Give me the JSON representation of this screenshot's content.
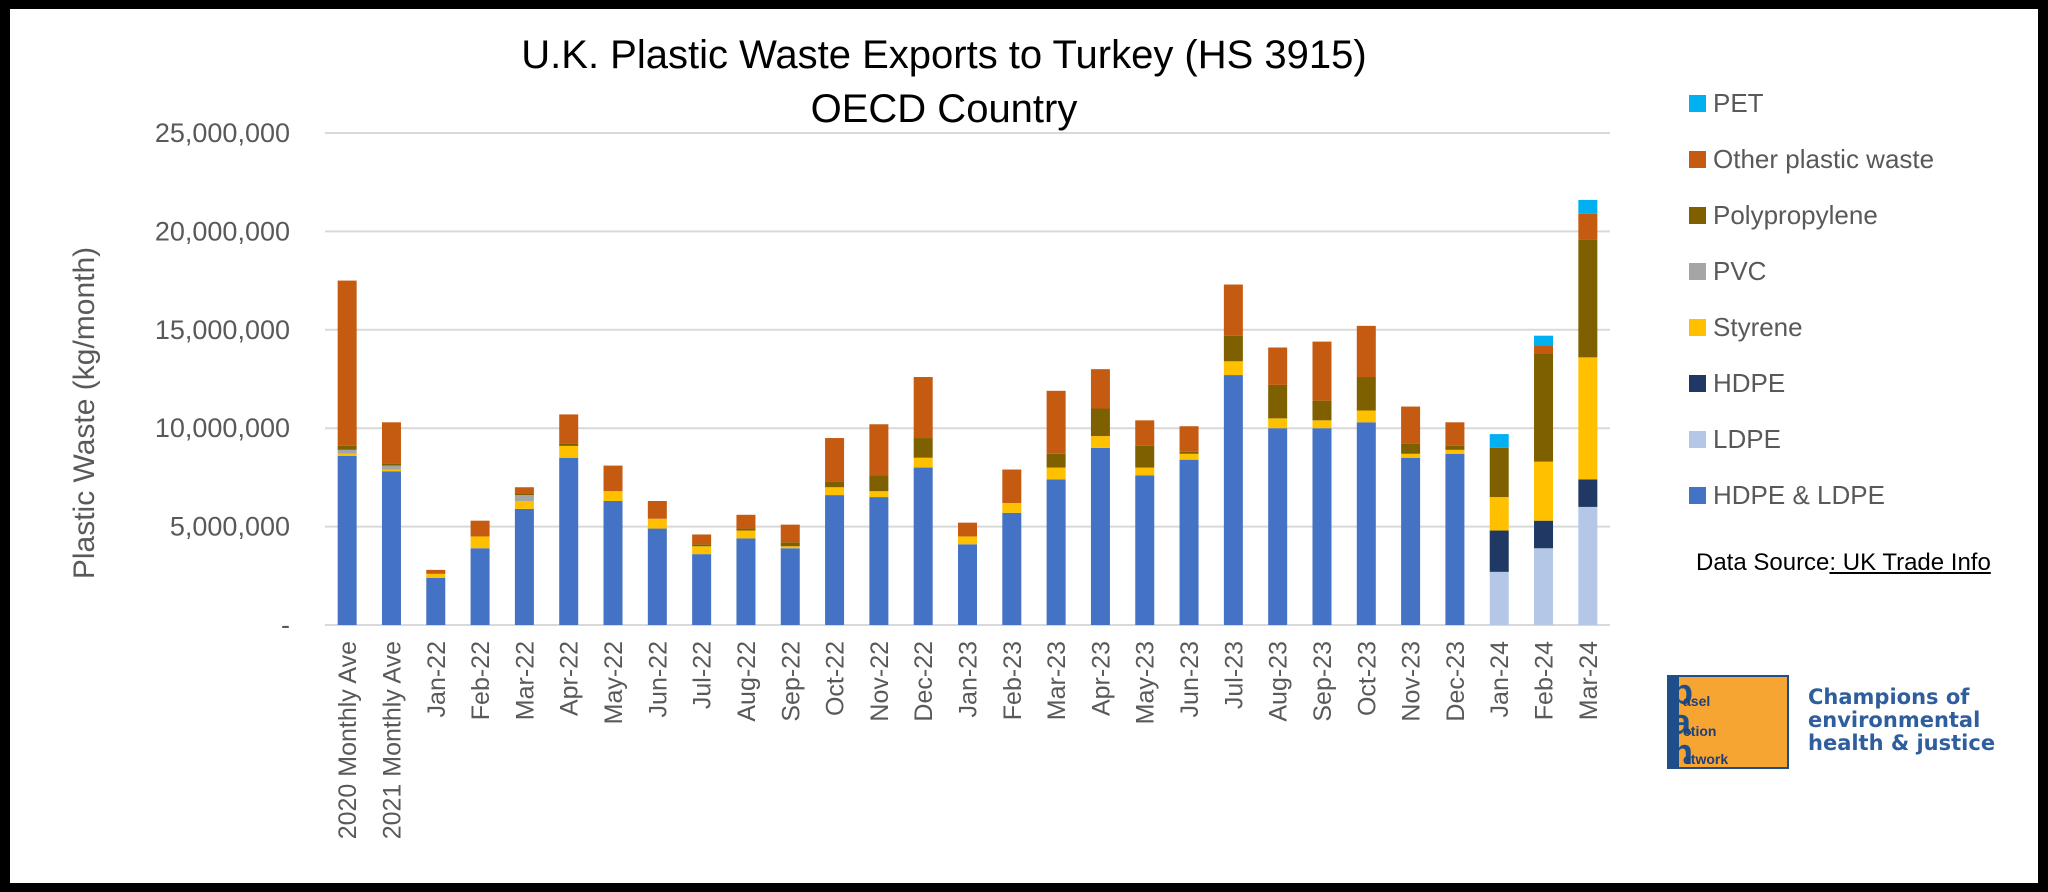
{
  "chart_data": {
    "type": "bar",
    "stacked": true,
    "title": "U.K. Plastic Waste Exports to Turkey (HS 3915)",
    "subtitle": "OECD Country",
    "ylabel": "Plastic Waste (kg/month)",
    "xlabel": "",
    "ylim": [
      0,
      25000000
    ],
    "yticks": [
      0,
      5000000,
      10000000,
      15000000,
      20000000,
      25000000
    ],
    "ytick_labels": [
      "-",
      "5,000,000",
      "10,000,000",
      "15,000,000",
      "20,000,000",
      "25,000,000"
    ],
    "grid": true,
    "legend_position": "right",
    "categories": [
      "2020 Monthly Ave",
      "2021 Monthly Ave",
      "Jan-22",
      "Feb-22",
      "Mar-22",
      "Apr-22",
      "May-22",
      "Jun-22",
      "Jul-22",
      "Aug-22",
      "Sep-22",
      "Oct-22",
      "Nov-22",
      "Dec-22",
      "Jan-23",
      "Feb-23",
      "Mar-23",
      "Apr-23",
      "May-23",
      "Jun-23",
      "Jul-23",
      "Aug-23",
      "Sep-23",
      "Oct-23",
      "Nov-23",
      "Dec-23",
      "Jan-24",
      "Feb-24",
      "Mar-24"
    ],
    "series": [
      {
        "name": "HDPE & LDPE",
        "color": "#4472c4",
        "values": [
          8600000,
          7800000,
          2400000,
          3900000,
          5900000,
          8500000,
          6300000,
          4900000,
          3600000,
          4400000,
          3900000,
          6600000,
          6500000,
          8000000,
          4100000,
          5700000,
          7400000,
          9000000,
          7600000,
          8400000,
          12700000,
          10000000,
          10000000,
          10300000,
          8500000,
          8700000,
          0,
          0,
          0
        ]
      },
      {
        "name": "LDPE",
        "color": "#b4c7e7",
        "values": [
          0,
          0,
          0,
          0,
          0,
          0,
          0,
          0,
          0,
          0,
          0,
          0,
          0,
          0,
          0,
          0,
          0,
          0,
          0,
          0,
          0,
          0,
          0,
          0,
          0,
          0,
          2700000,
          3900000,
          6000000
        ]
      },
      {
        "name": "HDPE",
        "color": "#203864",
        "values": [
          0,
          0,
          0,
          0,
          0,
          0,
          0,
          0,
          0,
          0,
          0,
          0,
          0,
          0,
          0,
          0,
          0,
          0,
          0,
          0,
          0,
          0,
          0,
          0,
          0,
          0,
          2100000,
          1400000,
          1400000
        ]
      },
      {
        "name": "Styrene",
        "color": "#ffc000",
        "values": [
          100000,
          100000,
          200000,
          600000,
          400000,
          600000,
          500000,
          500000,
          400000,
          400000,
          100000,
          400000,
          300000,
          500000,
          400000,
          500000,
          600000,
          600000,
          400000,
          300000,
          700000,
          500000,
          400000,
          600000,
          200000,
          200000,
          1700000,
          3000000,
          6200000
        ]
      },
      {
        "name": "PVC",
        "color": "#a5a5a5",
        "values": [
          200000,
          200000,
          0,
          0,
          300000,
          0,
          0,
          0,
          0,
          0,
          0,
          0,
          0,
          0,
          0,
          0,
          0,
          0,
          0,
          0,
          0,
          0,
          0,
          0,
          0,
          0,
          0,
          0,
          0
        ]
      },
      {
        "name": "Polypropylene",
        "color": "#7f6000",
        "values": [
          200000,
          100000,
          0,
          0,
          100000,
          100000,
          0,
          0,
          100000,
          100000,
          200000,
          300000,
          800000,
          1000000,
          0,
          0,
          700000,
          1400000,
          1100000,
          100000,
          1300000,
          1700000,
          1000000,
          1700000,
          500000,
          200000,
          2500000,
          5500000,
          6000000
        ]
      },
      {
        "name": "Other plastic waste",
        "color": "#c55a11",
        "values": [
          8400000,
          2100000,
          200000,
          800000,
          300000,
          1500000,
          1300000,
          900000,
          500000,
          700000,
          900000,
          2200000,
          2600000,
          3100000,
          700000,
          1700000,
          3200000,
          2000000,
          1300000,
          1300000,
          2600000,
          1900000,
          3000000,
          2600000,
          1900000,
          1200000,
          0,
          400000,
          1300000
        ]
      },
      {
        "name": "PET",
        "color": "#00b0f0",
        "values": [
          0,
          0,
          0,
          0,
          0,
          0,
          0,
          0,
          0,
          0,
          0,
          0,
          0,
          0,
          0,
          0,
          0,
          0,
          0,
          0,
          0,
          0,
          0,
          0,
          0,
          0,
          700000,
          500000,
          700000
        ]
      }
    ],
    "legend_order": [
      "PET",
      "Other plastic waste",
      "Polypropylene",
      "PVC",
      "Styrene",
      "HDPE",
      "LDPE",
      "HDPE & LDPE"
    ]
  },
  "source": {
    "prefix": "Data Source",
    "link_text": ": UK Trade Info"
  },
  "logo": {
    "letters": [
      "b",
      "a",
      "n"
    ],
    "words": [
      "asel",
      "ction",
      "etwork"
    ],
    "slogan_lines": [
      "Champions of",
      "environmental",
      "health & justice"
    ],
    "colors": {
      "orange": "#f7a532",
      "blue": "#1f4f8a"
    }
  }
}
